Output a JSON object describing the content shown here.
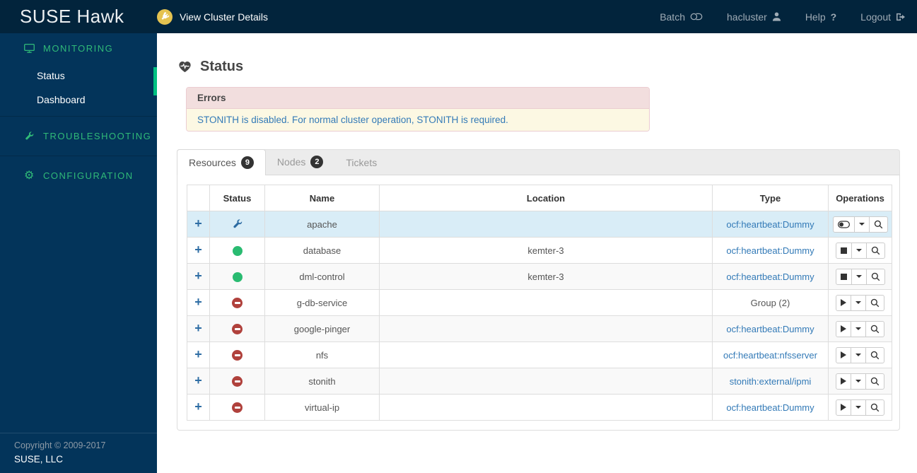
{
  "app": {
    "brand": "SUSE Hawk",
    "cluster_details_label": "View Cluster Details",
    "topnav": {
      "batch": "Batch",
      "user": "hacluster",
      "help": "Help",
      "help_glyph": "?",
      "logout": "Logout"
    }
  },
  "sidebar": {
    "monitoring": {
      "label": "MONITORING",
      "items": [
        {
          "label": "Status",
          "active": true
        },
        {
          "label": "Dashboard",
          "active": false
        }
      ]
    },
    "troubleshooting": {
      "label": "TROUBLESHOOTING"
    },
    "configuration": {
      "label": "CONFIGURATION",
      "gear_glyph": "⚙"
    },
    "footer": {
      "copyright": "Copyright © 2009-2017",
      "company": "SUSE, LLC"
    }
  },
  "page": {
    "title": "Status"
  },
  "errors_panel": {
    "title": "Errors",
    "message": "STONITH is disabled. For normal cluster operation, STONITH is required."
  },
  "tabs": [
    {
      "label": "Resources",
      "badge": "9",
      "active": true
    },
    {
      "label": "Nodes",
      "badge": "2",
      "active": false
    },
    {
      "label": "Tickets",
      "badge": "",
      "active": false
    }
  ],
  "table": {
    "columns": [
      "Status",
      "Name",
      "Location",
      "Type",
      "Operations"
    ],
    "rows": [
      {
        "name": "apache",
        "status": "maintenance",
        "location": "",
        "type": "ocf:heartbeat:Dummy",
        "type_link": true,
        "action": "toggle",
        "highlight": true
      },
      {
        "name": "database",
        "status": "running",
        "location": "kemter-3",
        "type": "ocf:heartbeat:Dummy",
        "type_link": true,
        "action": "stop",
        "highlight": false
      },
      {
        "name": "dml-control",
        "status": "running",
        "location": "kemter-3",
        "type": "ocf:heartbeat:Dummy",
        "type_link": true,
        "action": "stop",
        "highlight": false
      },
      {
        "name": "g-db-service",
        "status": "stopped",
        "location": "",
        "type": "Group (2)",
        "type_link": false,
        "action": "start",
        "highlight": false
      },
      {
        "name": "google-pinger",
        "status": "stopped",
        "location": "",
        "type": "ocf:heartbeat:Dummy",
        "type_link": true,
        "action": "start",
        "highlight": false
      },
      {
        "name": "nfs",
        "status": "stopped",
        "location": "",
        "type": "ocf:heartbeat:nfsserver",
        "type_link": true,
        "action": "start",
        "highlight": false
      },
      {
        "name": "stonith",
        "status": "stopped",
        "location": "",
        "type": "stonith:external/ipmi",
        "type_link": true,
        "action": "start",
        "highlight": false
      },
      {
        "name": "virtual-ip",
        "status": "stopped",
        "location": "",
        "type": "ocf:heartbeat:Dummy",
        "type_link": true,
        "action": "start",
        "highlight": false
      }
    ]
  },
  "colors": {
    "topbar": "#02243c",
    "sidebar": "#03345a",
    "accent_green": "#30ba78",
    "active_marker": "#00c081",
    "link_blue": "#337ab7",
    "running_green": "#2abb71",
    "stopped_red": "#b0413c",
    "error_header_bg": "#f2dede",
    "error_body_bg": "#fcf8e3",
    "row_highlight": "#d9edf7",
    "conn_badge_yellow": "#e5c351"
  },
  "icons": {
    "plug-icon": "plug in yellow circle",
    "toggle-icon": "batch mode toggle",
    "user-icon": "person silhouette",
    "question-icon": "?",
    "logout-icon": "sign-out arrow",
    "monitor-icon": "desktop display",
    "wrench-icon": "wrench",
    "gear-icon": "⚙",
    "heart-pulse-icon": "heartbeat",
    "expand-icon": "+",
    "running-icon": "green dot",
    "stopped-icon": "red minus circle",
    "maintenance-wrench-icon": "blue wrench",
    "start-icon": "play triangle",
    "stop-icon": "black square",
    "caret-down-icon": "▼",
    "search-icon": "magnifier"
  }
}
